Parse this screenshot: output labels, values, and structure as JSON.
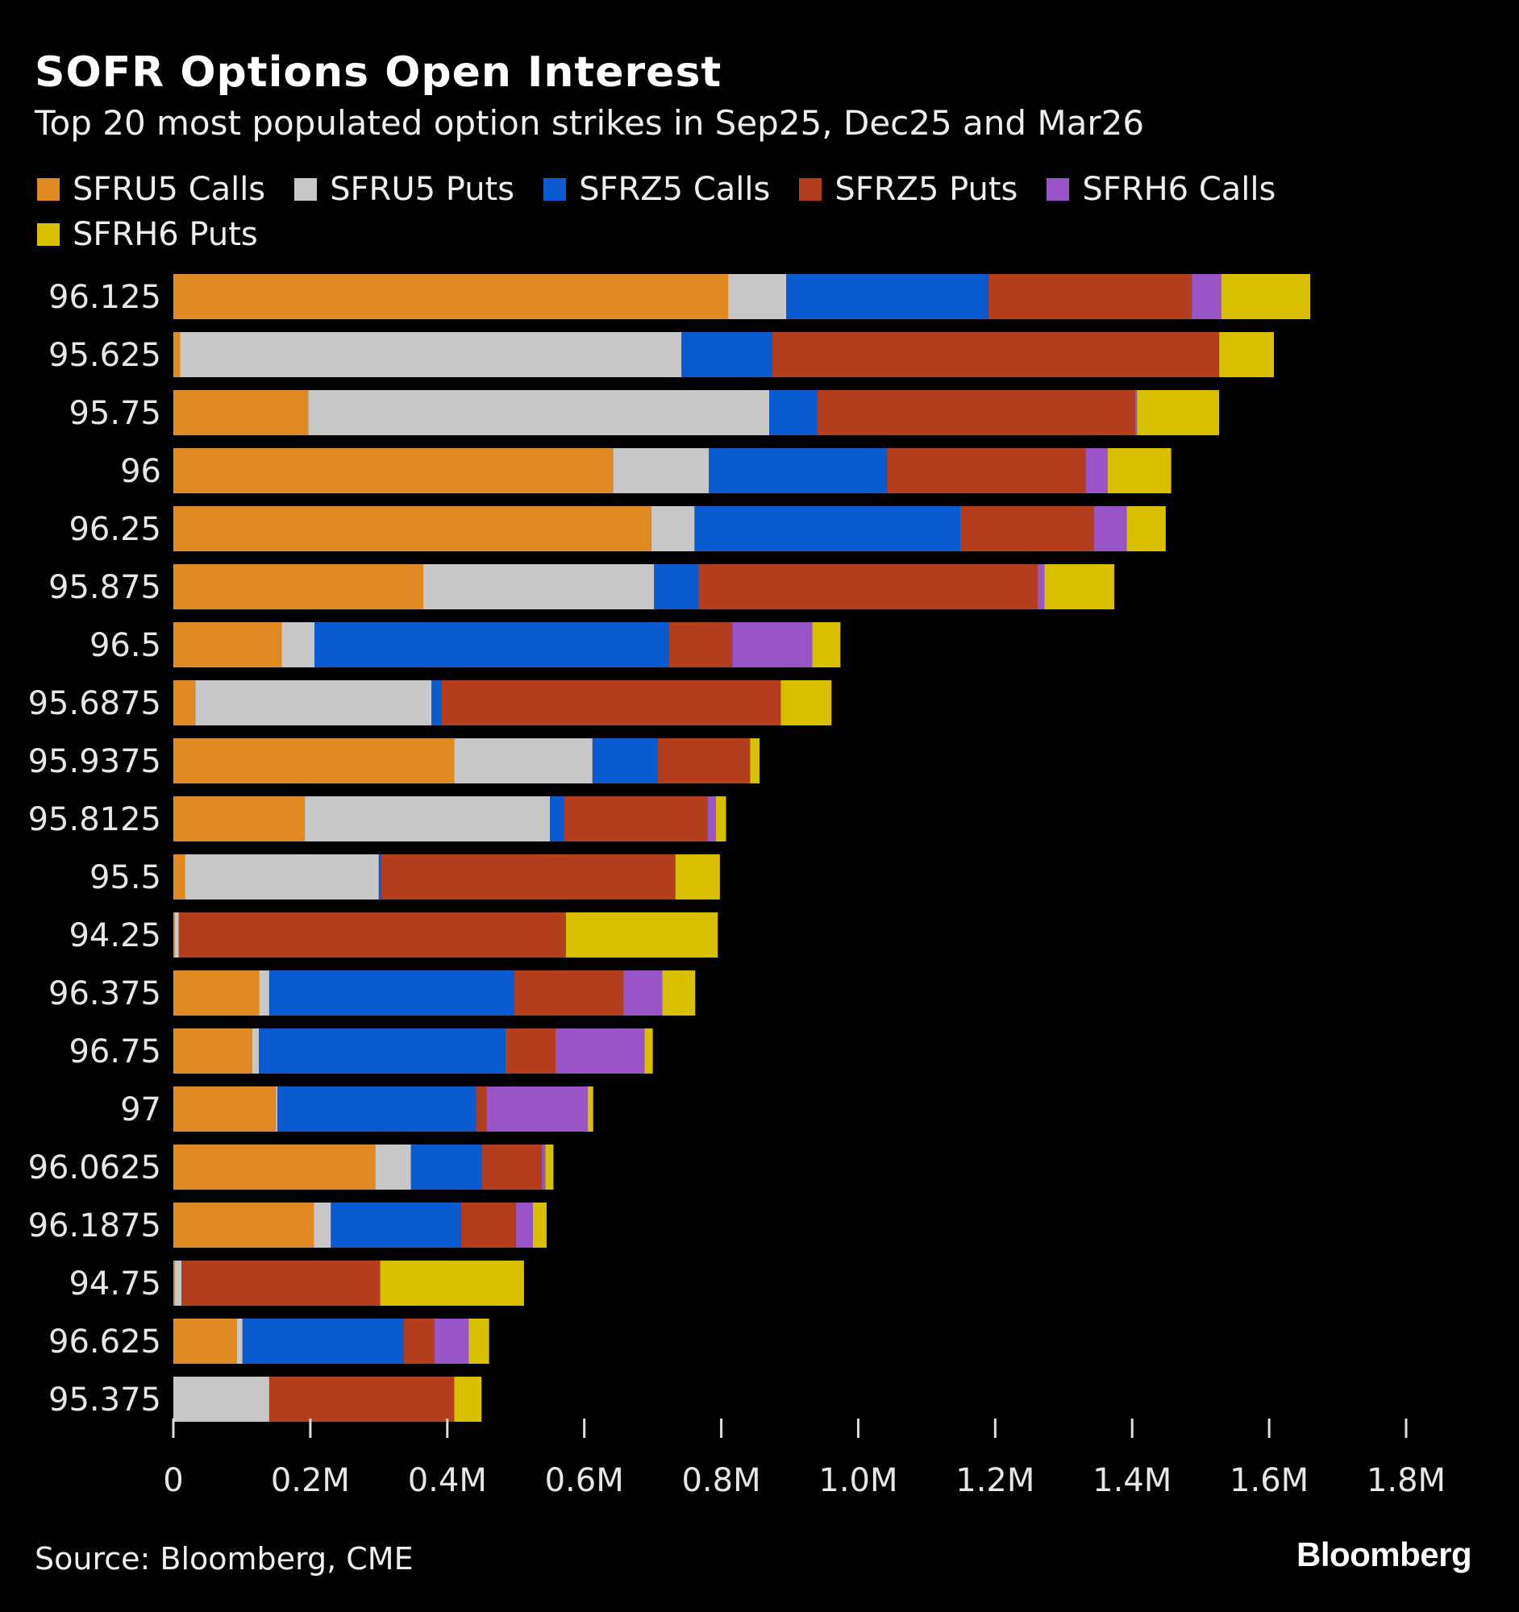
{
  "title": "SOFR Options Open Interest",
  "subtitle": "Top 20 most populated option strikes in Sep25, Dec25 and Mar26",
  "source": "Source: Bloomberg, CME",
  "logo": "Bloomberg",
  "chart_data": {
    "type": "bar",
    "orientation": "horizontal",
    "stacked": true,
    "legend_position": "top-left",
    "grid": false,
    "xlim": [
      0,
      1800000
    ],
    "x_ticks": [
      0,
      200000,
      400000,
      600000,
      800000,
      1000000,
      1200000,
      1400000,
      1600000,
      1800000
    ],
    "x_tick_labels": [
      "0",
      "0.2M",
      "0.4M",
      "0.6M",
      "0.8M",
      "1.0M",
      "1.2M",
      "1.4M",
      "1.6M",
      "1.8M"
    ],
    "categories": [
      "96.125",
      "95.625",
      "95.75",
      "96",
      "96.25",
      "95.875",
      "96.5",
      "95.6875",
      "95.9375",
      "95.8125",
      "95.5",
      "94.25",
      "96.375",
      "96.75",
      "97",
      "96.0625",
      "96.1875",
      "94.75",
      "96.625",
      "95.375"
    ],
    "series": [
      {
        "name": "SFRU5 Calls",
        "color": "#E08A24",
        "values": [
          810000,
          10000,
          197000,
          642000,
          698000,
          365000,
          158000,
          32000,
          410000,
          192000,
          17000,
          2000,
          125000,
          115000,
          150000,
          295000,
          205000,
          2000,
          93000,
          0
        ]
      },
      {
        "name": "SFRU5 Puts",
        "color": "#C8C8C8",
        "values": [
          85000,
          732000,
          673000,
          140000,
          63000,
          337000,
          48000,
          345000,
          202000,
          358000,
          283000,
          6000,
          15000,
          10000,
          2000,
          52000,
          25000,
          10000,
          8000,
          140000
        ]
      },
      {
        "name": "SFRZ5 Calls",
        "color": "#0A5BD0",
        "values": [
          295000,
          132000,
          70000,
          260000,
          388000,
          65000,
          517000,
          15000,
          95000,
          20000,
          3000,
          0,
          357000,
          360000,
          290000,
          103000,
          190000,
          0,
          235000,
          0
        ]
      },
      {
        "name": "SFRZ5 Puts",
        "color": "#B23E1E",
        "values": [
          297000,
          653000,
          464000,
          290000,
          195000,
          495000,
          93000,
          495000,
          135000,
          210000,
          430000,
          565000,
          160000,
          73000,
          15000,
          88000,
          80000,
          290000,
          45000,
          270000
        ]
      },
      {
        "name": "SFRH6 Calls",
        "color": "#9955C8",
        "values": [
          43000,
          0,
          3000,
          32000,
          48000,
          10000,
          117000,
          0,
          0,
          12000,
          0,
          0,
          57000,
          130000,
          148000,
          5000,
          25000,
          0,
          50000,
          0
        ]
      },
      {
        "name": "SFRH6 Puts",
        "color": "#D8C000",
        "values": [
          130000,
          80000,
          120000,
          93000,
          57000,
          102000,
          41000,
          74000,
          14000,
          15000,
          65000,
          222000,
          48000,
          12000,
          8000,
          12000,
          20000,
          210000,
          30000,
          40000
        ]
      }
    ]
  }
}
